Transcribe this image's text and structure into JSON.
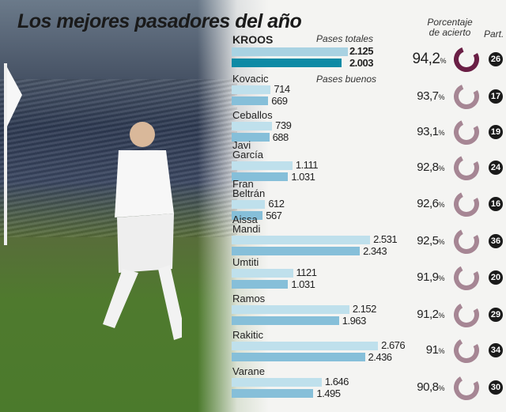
{
  "title": "Los mejores pasadores del año",
  "chart_data": {
    "type": "bar",
    "title": "Los mejores pasadores del año",
    "legend": {
      "total": "Pases totales",
      "good": "Pases buenos"
    },
    "columns": {
      "accuracy": "Porcentaje de acierto",
      "matches": "Part."
    },
    "colors": {
      "total": "#bfe0ec",
      "good": "#86bfd9",
      "lead_good": "#0e8aa5",
      "ring_lead": "#6a1f45",
      "ring": "#a68694"
    },
    "rows": [
      {
        "name": "KROOS",
        "total": 2125,
        "total_label": "2.125",
        "good": 2003,
        "good_label": "2.003",
        "accuracy": 94.2,
        "accuracy_label": "94,2",
        "matches": "26"
      },
      {
        "name": "Kovacic",
        "total": 714,
        "total_label": "714",
        "good": 669,
        "good_label": "669",
        "accuracy": 93.7,
        "accuracy_label": "93,7",
        "matches": "17"
      },
      {
        "name": "Ceballos",
        "total": 739,
        "total_label": "739",
        "good": 688,
        "good_label": "688",
        "accuracy": 93.1,
        "accuracy_label": "93,1",
        "matches": "19"
      },
      {
        "name": "Javi García",
        "total": 1111,
        "total_label": "1.111",
        "good": 1031,
        "good_label": "1.031",
        "accuracy": 92.8,
        "accuracy_label": "92,8",
        "matches": "24"
      },
      {
        "name": "Fran Beltrán",
        "total": 612,
        "total_label": "612",
        "good": 567,
        "good_label": "567",
        "accuracy": 92.6,
        "accuracy_label": "92,6",
        "matches": "16"
      },
      {
        "name": "Aissa Mandi",
        "total": 2531,
        "total_label": "2.531",
        "good": 2343,
        "good_label": "2.343",
        "accuracy": 92.5,
        "accuracy_label": "92,5",
        "matches": "36"
      },
      {
        "name": "Umtiti",
        "total": 1121,
        "total_label": "1121",
        "good": 1031,
        "good_label": "1.031",
        "accuracy": 91.9,
        "accuracy_label": "91,9",
        "matches": "20"
      },
      {
        "name": "Ramos",
        "total": 2152,
        "total_label": "2.152",
        "good": 1963,
        "good_label": "1.963",
        "accuracy": 91.2,
        "accuracy_label": "91,2",
        "matches": "29"
      },
      {
        "name": "Rakitic",
        "total": 2676,
        "total_label": "2.676",
        "good": 2436,
        "good_label": "2.436",
        "accuracy": 91,
        "accuracy_label": "91",
        "matches": "34"
      },
      {
        "name": "Varane",
        "total": 1646,
        "total_label": "1.646",
        "good": 1495,
        "good_label": "1.495",
        "accuracy": 90.8,
        "accuracy_label": "90,8",
        "matches": "30"
      }
    ]
  }
}
